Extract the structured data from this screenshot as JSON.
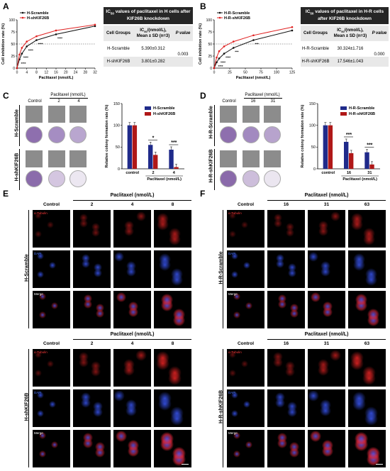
{
  "panels": {
    "A": {
      "label": "A",
      "chart_data": {
        "type": "line",
        "xlabel": "Paclitaxel (nmol/L)",
        "ylabel": "Cell inhibition rate (%)",
        "xlim": [
          0,
          32
        ],
        "ylim": [
          0,
          100
        ],
        "xticks": [
          "0",
          "4",
          "8",
          "12",
          "16",
          "20",
          "24",
          "28",
          "32"
        ],
        "yticks": [
          "0",
          "25",
          "50",
          "75",
          "100"
        ],
        "legend": "top-left",
        "series": [
          {
            "name": "H-Scramble",
            "color": "#111111",
            "x": [
              0,
              1,
              2,
              4,
              8,
              16,
              32
            ],
            "values": [
              0,
              18,
              30,
              45,
              58,
              70,
              87
            ]
          },
          {
            "name": "H-shKIF26B",
            "color": "#e02020",
            "x": [
              0,
              1,
              2,
              4,
              8,
              16,
              32
            ],
            "values": [
              0,
              28,
              42,
              55,
              66,
              78,
              90
            ]
          }
        ],
        "annotations": [
          "****",
          "****",
          "****",
          "****",
          "****"
        ]
      },
      "table": {
        "title_pre": "IC",
        "title_sub": "50",
        "title_post": " values of paclitaxel in H cells after KIF26B knockdown",
        "col1": "Cell Groups",
        "col2_pre": "IC",
        "col2_sub": "50",
        "col2_post": "/(nmol/L),",
        "col2_line2": "Mean ± SD (n=3)",
        "col3": "P value",
        "rows": [
          {
            "group": "H-Scramble",
            "value": "5.390±0.312"
          },
          {
            "group": "H-shKIF26B",
            "value": "3.801±0.282"
          }
        ],
        "pvalue": "0.003"
      }
    },
    "B": {
      "label": "B",
      "chart_data": {
        "type": "line",
        "xlabel": "Paclitaxel (nmol/L)",
        "ylabel": "Cell inhibition rate (%)",
        "xlim": [
          0,
          125
        ],
        "ylim": [
          0,
          100
        ],
        "xticks": [
          "0",
          "25",
          "50",
          "75",
          "100",
          "125"
        ],
        "yticks": [
          "0",
          "25",
          "50",
          "75",
          "100"
        ],
        "legend": "top-left",
        "series": [
          {
            "name": "H-R-Scramble",
            "color": "#111111",
            "x": [
              0,
              4,
              8,
              16,
              31,
              63,
              125
            ],
            "values": [
              0,
              12,
              20,
              30,
              42,
              58,
              78
            ]
          },
          {
            "name": "H-R-shKIF26B",
            "color": "#e02020",
            "x": [
              0,
              4,
              8,
              16,
              31,
              63,
              125
            ],
            "values": [
              0,
              22,
              35,
              45,
              55,
              68,
              85
            ]
          }
        ],
        "annotations": [
          "****",
          "****",
          "****",
          "***",
          "***"
        ]
      },
      "table": {
        "title_pre": "IC",
        "title_sub": "50",
        "title_post": " values of paclitaxel in H-R cells after KIF26B knockdown",
        "col1": "Cell Groups",
        "col2_pre": "IC",
        "col2_sub": "50",
        "col2_post": "/(nmol/L),",
        "col2_line2": "Mean ± SD (n=3)",
        "col3": "P value",
        "rows": [
          {
            "group": "H-R-Scramble",
            "value": "30.324±1.716"
          },
          {
            "group": "H-R-shKIF26B",
            "value": "17.546±1.043"
          }
        ],
        "pvalue": "0.000"
      }
    },
    "C": {
      "label": "C",
      "header_drug": "Paclitaxel (nmol/L)",
      "col_control": "Control",
      "cols": [
        "2",
        "4"
      ],
      "rows": [
        "H-Scramble",
        "H-shKIF26B"
      ],
      "chart_data": {
        "type": "bar",
        "categories": [
          "control",
          "2",
          "4"
        ],
        "ylabel": "Relative colony formation rate (%)",
        "xlabel_group": "Paclitaxel (nmol/L)",
        "ylim": [
          0,
          150
        ],
        "yticks": [
          "0",
          "50",
          "100",
          "150"
        ],
        "legend": "top-right",
        "series": [
          {
            "name": "H-Scramble",
            "color": "#1f2a8a",
            "values": [
              100,
              55,
              44
            ]
          },
          {
            "name": "H-shKIF26B",
            "color": "#b01818",
            "values": [
              100,
              32,
              4
            ]
          }
        ],
        "significance": [
          "*",
          "***"
        ]
      }
    },
    "D": {
      "label": "D",
      "header_drug": "Paclitaxel (nmol/L)",
      "col_control": "Control",
      "cols": [
        "16",
        "31"
      ],
      "rows": [
        "H-R-Scramble",
        "H-R-shKIF26B"
      ],
      "chart_data": {
        "type": "bar",
        "categories": [
          "control",
          "16",
          "31"
        ],
        "ylabel": "Relative colony formation rate (%)",
        "xlabel_group": "Paclitaxel (nmol/L)",
        "ylim": [
          0,
          150
        ],
        "yticks": [
          "0",
          "50",
          "100",
          "150"
        ],
        "legend": "top-right",
        "series": [
          {
            "name": "H-R-Scramble",
            "color": "#1f2a8a",
            "values": [
              100,
              62,
              38
            ]
          },
          {
            "name": "H-R-shKIF26B",
            "color": "#b01818",
            "values": [
              100,
              36,
              10
            ]
          }
        ],
        "significance": [
          "***",
          "***"
        ]
      }
    },
    "E": {
      "label": "E",
      "header_drug": "Paclitaxel (nmol/L)",
      "col_control": "Control",
      "cols": [
        "2",
        "4",
        "8"
      ],
      "groups": [
        "H-Scramble",
        "H-shKIF26B"
      ],
      "channels": [
        "α-Tubulin",
        "DAPI",
        "Merge"
      ]
    },
    "F": {
      "label": "F",
      "header_drug": "Paclitaxel (nmol/L)",
      "col_control": "Control",
      "cols": [
        "16",
        "31",
        "63"
      ],
      "groups": [
        "H-R-Scramble",
        "H-R-shKIF26B"
      ],
      "channels": [
        "α-Tubulin",
        "DAPI",
        "Merge"
      ]
    }
  }
}
